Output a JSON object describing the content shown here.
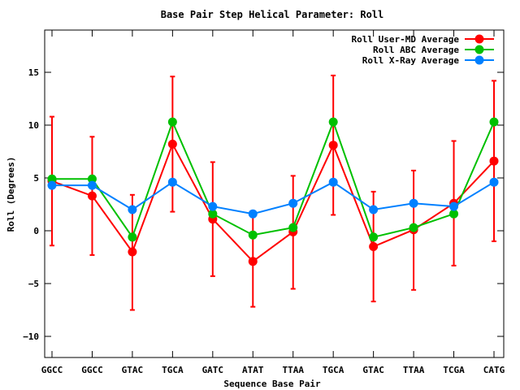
{
  "chart_data": {
    "type": "line",
    "title": "Base Pair Step Helical Parameter: Roll",
    "xlabel": "Sequence Base Pair",
    "ylabel": "Roll (Degrees)",
    "categories": [
      "GGCC",
      "GGCC",
      "GTAC",
      "TGCA",
      "GATC",
      "ATAT",
      "TTAA",
      "TGCA",
      "GTAC",
      "TTAA",
      "TCGA",
      "CATG"
    ],
    "ylim": [
      -12,
      19
    ],
    "yticks": [
      -10,
      -5,
      0,
      5,
      10,
      15
    ],
    "grid": false,
    "legend_position": "top-right",
    "series": [
      {
        "name": "Roll User-MD Average",
        "color": "#ff0000",
        "values": [
          4.7,
          3.3,
          -2.0,
          8.2,
          1.1,
          -2.9,
          -0.1,
          8.1,
          -1.5,
          0.1,
          2.6,
          6.6
        ],
        "error_low": [
          -1.4,
          -2.3,
          -7.5,
          1.8,
          -4.3,
          -7.2,
          -5.5,
          1.5,
          -6.7,
          -5.6,
          -3.3,
          -1.0
        ],
        "error_high": [
          10.8,
          8.9,
          3.4,
          14.6,
          6.5,
          1.4,
          5.2,
          14.7,
          3.7,
          5.7,
          8.5,
          14.2
        ]
      },
      {
        "name": "Roll ABC Average",
        "color": "#00c000",
        "values": [
          4.9,
          4.9,
          -0.6,
          10.3,
          1.6,
          -0.4,
          0.3,
          10.3,
          -0.6,
          0.3,
          1.6,
          10.3
        ]
      },
      {
        "name": "Roll X-Ray Average",
        "color": "#0080ff",
        "values": [
          4.3,
          4.3,
          2.0,
          4.6,
          2.3,
          1.6,
          2.6,
          4.6,
          2.0,
          2.6,
          2.3,
          4.6
        ]
      }
    ]
  }
}
